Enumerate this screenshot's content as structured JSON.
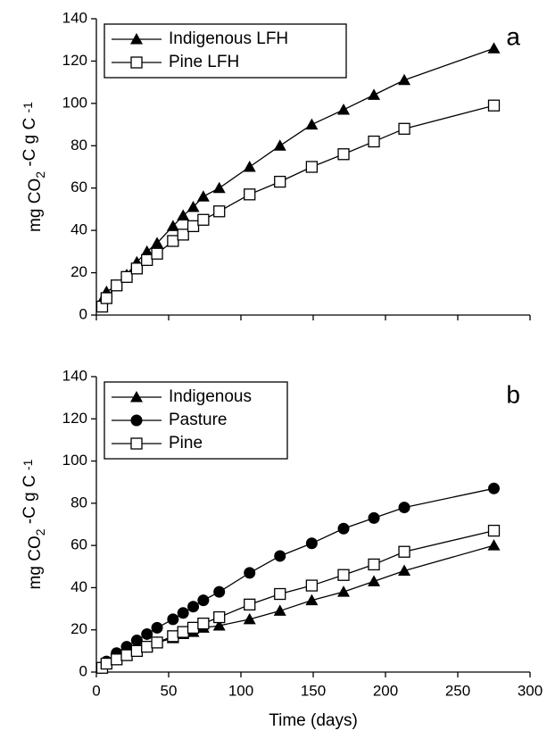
{
  "chart_data": [
    {
      "type": "line",
      "annotation": "a",
      "ylabel_parts": [
        "mg CO",
        "2",
        " -C g C ",
        "-1"
      ],
      "x": [
        4,
        7,
        14,
        21,
        28,
        35,
        42,
        53,
        60,
        67,
        74,
        85,
        106,
        127,
        149,
        171,
        192,
        213,
        275
      ],
      "series": [
        {
          "name": "Indigenous LFH",
          "color": "#000000",
          "marker": "triangle",
          "values": [
            7,
            11,
            14,
            19,
            25,
            30,
            34,
            42,
            47,
            51,
            56,
            60,
            70,
            80,
            90,
            97,
            104,
            111,
            126
          ]
        },
        {
          "name": "Pine LFH",
          "color": "#000000",
          "marker": "square-open",
          "values": [
            4,
            8,
            14,
            18,
            22,
            26,
            29,
            35,
            38,
            42,
            45,
            49,
            57,
            63,
            70,
            76,
            82,
            88,
            99
          ]
        }
      ],
      "xlim": [
        0,
        300
      ],
      "xticks": [
        0,
        50,
        100,
        150,
        200,
        250,
        300
      ],
      "ylim": [
        0,
        140
      ],
      "yticks": [
        0,
        20,
        40,
        60,
        80,
        100,
        120,
        140
      ],
      "legend": "top-left"
    },
    {
      "type": "line",
      "annotation": "b",
      "ylabel_parts": [
        "mg CO",
        "2",
        " -C g C ",
        "-1"
      ],
      "xlabel": "Time (days)",
      "x": [
        4,
        7,
        14,
        21,
        28,
        35,
        42,
        53,
        60,
        67,
        74,
        85,
        106,
        127,
        149,
        171,
        192,
        213,
        275
      ],
      "series": [
        {
          "name": "Indigenous",
          "color": "#000000",
          "marker": "triangle",
          "values": [
            2,
            4,
            6,
            8,
            10,
            12,
            14,
            16,
            18,
            19,
            21,
            22,
            25,
            29,
            34,
            38,
            43,
            48,
            60
          ]
        },
        {
          "name": "Pasture",
          "color": "#000000",
          "marker": "circle",
          "values": [
            2,
            5,
            9,
            12,
            15,
            18,
            21,
            25,
            28,
            31,
            34,
            38,
            47,
            55,
            61,
            68,
            73,
            78,
            87
          ]
        },
        {
          "name": "Pine",
          "color": "#000000",
          "marker": "square-open",
          "values": [
            2,
            4,
            6,
            8,
            10,
            12,
            14,
            17,
            19,
            21,
            23,
            26,
            32,
            37,
            41,
            46,
            51,
            57,
            67
          ]
        }
      ],
      "xlim": [
        0,
        300
      ],
      "xticks": [
        0,
        50,
        100,
        150,
        200,
        250,
        300
      ],
      "ylim": [
        0,
        140
      ],
      "yticks": [
        0,
        20,
        40,
        60,
        80,
        100,
        120,
        140
      ],
      "legend": "top-left"
    }
  ]
}
